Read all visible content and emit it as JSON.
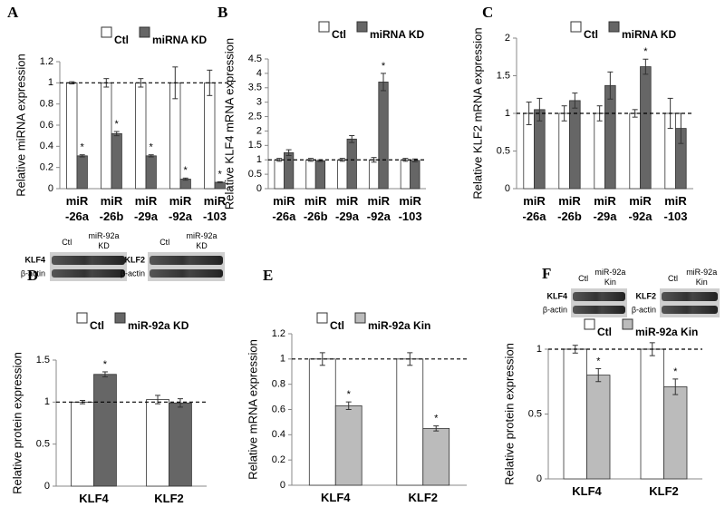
{
  "chart_data": [
    {
      "type": "bar",
      "panel": "A",
      "y_label": "Relative miRNA expression",
      "categories": [
        "miR -26a",
        "miR -26b",
        "miR -29a",
        "miR -92a",
        "miR -103"
      ],
      "series": [
        {
          "name": "Ctl",
          "color": "#ffffff",
          "values": [
            1,
            1,
            1,
            1,
            1
          ],
          "errors": [
            0.01,
            0.04,
            0.04,
            0.15,
            0.12
          ],
          "annotations": [
            null,
            null,
            null,
            null,
            null
          ]
        },
        {
          "name": "miRNA KD",
          "color": "#666666",
          "values": [
            0.31,
            0.52,
            0.31,
            0.09,
            0.06
          ],
          "errors": [
            0.01,
            0.02,
            0.01,
            0.01,
            0.005
          ],
          "annotations": [
            "*",
            "*",
            "*",
            "*",
            "*"
          ]
        }
      ],
      "ylim": [
        0,
        1.2
      ],
      "yticks": [
        0,
        0.2,
        0.4,
        0.6,
        0.8,
        1,
        1.2
      ],
      "reference": 1
    },
    {
      "type": "bar",
      "panel": "B",
      "y_label": "Relative KLF4 mRNA expression",
      "categories": [
        "miR -26a",
        "miR -26b",
        "miR -29a",
        "miR -92a",
        "miR -103"
      ],
      "series": [
        {
          "name": "Ctl",
          "color": "#ffffff",
          "values": [
            1,
            1,
            1,
            1,
            1
          ],
          "errors": [
            0.05,
            0.05,
            0.05,
            0.08,
            0.05
          ],
          "annotations": [
            null,
            null,
            null,
            null,
            null
          ]
        },
        {
          "name": "miRNA KD",
          "color": "#666666",
          "values": [
            1.25,
            0.97,
            1.72,
            3.7,
            0.98
          ],
          "errors": [
            0.1,
            0.03,
            0.12,
            0.3,
            0.05
          ],
          "annotations": [
            null,
            null,
            null,
            "*",
            null
          ]
        }
      ],
      "ylim": [
        0,
        4.5
      ],
      "yticks": [
        0,
        0.5,
        1,
        1.5,
        2,
        2.5,
        3,
        3.5,
        4,
        4.5
      ],
      "reference": 1
    },
    {
      "type": "bar",
      "panel": "C",
      "y_label": "Relative KLF2 mRNA expression",
      "categories": [
        "miR -26a",
        "miR -26b",
        "miR -29a",
        "miR -92a",
        "miR -103"
      ],
      "series": [
        {
          "name": "Ctl",
          "color": "#ffffff",
          "values": [
            1,
            1,
            1,
            1,
            1
          ],
          "errors": [
            0.15,
            0.1,
            0.1,
            0.05,
            0.2
          ],
          "annotations": [
            null,
            null,
            null,
            null,
            null
          ]
        },
        {
          "name": "miRNA KD",
          "color": "#666666",
          "values": [
            1.05,
            1.17,
            1.37,
            1.62,
            0.8
          ],
          "errors": [
            0.15,
            0.1,
            0.18,
            0.1,
            0.2
          ],
          "annotations": [
            null,
            null,
            null,
            "*",
            null
          ]
        }
      ],
      "ylim": [
        0,
        2
      ],
      "yticks": [
        0,
        0.5,
        1,
        1.5,
        2
      ],
      "reference": 1
    },
    {
      "type": "bar",
      "panel": "D",
      "y_label": "Relative protein expression",
      "categories": [
        "KLF4",
        "KLF2"
      ],
      "series": [
        {
          "name": "Ctl",
          "color": "#ffffff",
          "values": [
            1,
            1.03
          ],
          "errors": [
            0.02,
            0.05
          ],
          "annotations": [
            null,
            null
          ]
        },
        {
          "name": "miR-92a KD",
          "color": "#666666",
          "values": [
            1.33,
            0.99
          ],
          "errors": [
            0.03,
            0.05
          ],
          "annotations": [
            "*",
            null
          ]
        }
      ],
      "ylim": [
        0,
        1.5
      ],
      "yticks": [
        0,
        0.5,
        1,
        1.5
      ],
      "reference": 1,
      "blots": [
        {
          "protein": "KLF4",
          "control": "β-actin",
          "lanes": [
            "Ctl",
            "miR-92a KD"
          ]
        },
        {
          "protein": "KLF2",
          "control": "β-actin",
          "lanes": [
            "Ctl",
            "miR-92a KD"
          ]
        }
      ]
    },
    {
      "type": "bar",
      "panel": "E",
      "y_label": "Relative mRNA expression",
      "categories": [
        "KLF4",
        "KLF2"
      ],
      "series": [
        {
          "name": "Ctl",
          "color": "#ffffff",
          "values": [
            1,
            1
          ],
          "errors": [
            0.05,
            0.05
          ],
          "annotations": [
            null,
            null
          ]
        },
        {
          "name": "miR-92a Kin",
          "color": "#bbbbbb",
          "values": [
            0.63,
            0.45
          ],
          "errors": [
            0.03,
            0.02
          ],
          "annotations": [
            "*",
            "*"
          ]
        }
      ],
      "ylim": [
        0,
        1.2
      ],
      "yticks": [
        0,
        0.2,
        0.4,
        0.6,
        0.8,
        1,
        1.2
      ],
      "reference": 1
    },
    {
      "type": "bar",
      "panel": "F",
      "y_label": "Relative protein expression",
      "categories": [
        "KLF4",
        "KLF2"
      ],
      "series": [
        {
          "name": "Ctl",
          "color": "#ffffff",
          "values": [
            1,
            1
          ],
          "errors": [
            0.03,
            0.05
          ],
          "annotations": [
            null,
            null
          ]
        },
        {
          "name": "miR-92a Kin",
          "color": "#bbbbbb",
          "values": [
            0.8,
            0.71
          ],
          "errors": [
            0.05,
            0.06
          ],
          "annotations": [
            "*",
            "*"
          ]
        }
      ],
      "ylim": [
        0,
        1
      ],
      "yticks": [
        0,
        0.5,
        1
      ],
      "reference": 1,
      "blots": [
        {
          "protein": "KLF4",
          "control": "β-actin",
          "lanes": [
            "Ctl",
            "miR-92a Kin"
          ]
        },
        {
          "protein": "KLF2",
          "control": "β-actin",
          "lanes": [
            "Ctl",
            "miR-92a Kin"
          ]
        }
      ]
    }
  ]
}
